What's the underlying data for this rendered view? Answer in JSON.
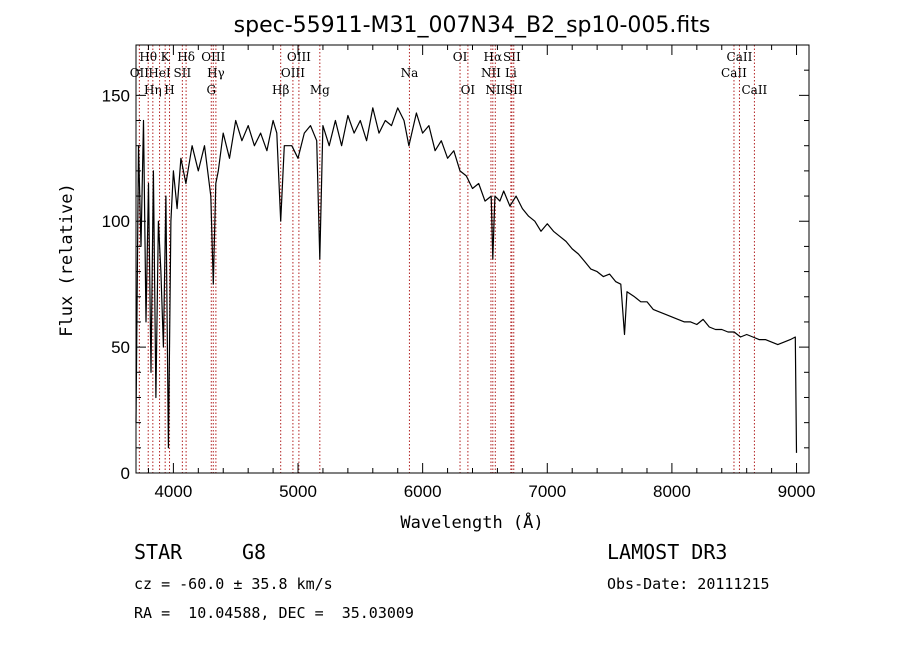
{
  "chart_data": {
    "type": "line",
    "title": "spec-55911-M31_007N34_B2_sp10-005.fits",
    "xlabel": "Wavelength (Å)",
    "ylabel": "Flux (relative)",
    "xlim": [
      3700,
      9100
    ],
    "ylim": [
      0,
      170
    ],
    "xticks": [
      4000,
      5000,
      6000,
      7000,
      8000,
      9000
    ],
    "xtick_labels": [
      "4000",
      "5000",
      "6000",
      "7000",
      "8000",
      "9000"
    ],
    "yticks": [
      0,
      50,
      100,
      150
    ],
    "ytick_labels": [
      "0",
      "50",
      "100",
      "150"
    ],
    "line_color": "#000000",
    "marker_line_color": "#b22222",
    "series": [
      {
        "name": "flux",
        "x": [
          3700,
          3720,
          3740,
          3760,
          3780,
          3800,
          3820,
          3840,
          3860,
          3880,
          3900,
          3920,
          3940,
          3960,
          3980,
          4000,
          4030,
          4060,
          4100,
          4150,
          4200,
          4250,
          4300,
          4320,
          4340,
          4360,
          4400,
          4450,
          4500,
          4550,
          4600,
          4650,
          4700,
          4750,
          4800,
          4830,
          4861,
          4890,
          4950,
          5000,
          5050,
          5100,
          5150,
          5175,
          5200,
          5250,
          5300,
          5350,
          5400,
          5450,
          5500,
          5550,
          5600,
          5650,
          5700,
          5750,
          5800,
          5850,
          5890,
          5950,
          6000,
          6050,
          6100,
          6150,
          6200,
          6250,
          6300,
          6350,
          6400,
          6450,
          6500,
          6550,
          6563,
          6580,
          6620,
          6650,
          6700,
          6750,
          6800,
          6850,
          6900,
          6950,
          7000,
          7050,
          7100,
          7150,
          7200,
          7250,
          7300,
          7350,
          7400,
          7450,
          7500,
          7550,
          7590,
          7620,
          7640,
          7700,
          7750,
          7800,
          7850,
          7900,
          7950,
          8000,
          8050,
          8100,
          8150,
          8200,
          8250,
          8300,
          8350,
          8400,
          8450,
          8500,
          8550,
          8600,
          8650,
          8700,
          8750,
          8800,
          8850,
          8900,
          8950,
          8990,
          9000
        ],
        "values": [
          20,
          130,
          90,
          140,
          60,
          115,
          40,
          120,
          30,
          100,
          80,
          50,
          110,
          10,
          100,
          120,
          105,
          125,
          115,
          130,
          120,
          130,
          110,
          75,
          115,
          120,
          135,
          125,
          140,
          132,
          138,
          130,
          135,
          128,
          140,
          135,
          100,
          130,
          130,
          125,
          135,
          138,
          132,
          85,
          138,
          130,
          140,
          130,
          142,
          135,
          140,
          132,
          145,
          135,
          140,
          138,
          145,
          140,
          130,
          143,
          135,
          138,
          128,
          132,
          125,
          128,
          120,
          118,
          113,
          115,
          108,
          110,
          85,
          110,
          108,
          112,
          106,
          110,
          105,
          102,
          100,
          96,
          99,
          96,
          94,
          92,
          89,
          87,
          84,
          81,
          80,
          78,
          79,
          76,
          75,
          55,
          72,
          70,
          68,
          68,
          65,
          64,
          63,
          62,
          61,
          60,
          60,
          59,
          61,
          58,
          57,
          57,
          56,
          56,
          54,
          55,
          54,
          53,
          53,
          52,
          51,
          52,
          53,
          54,
          8
        ]
      }
    ],
    "line_markers": [
      {
        "name": "OII",
        "wavelength": 3727,
        "tier": 2
      },
      {
        "name": "Hθ",
        "wavelength": 3798,
        "tier": 1
      },
      {
        "name": "Hη",
        "wavelength": 3835,
        "tier": 3
      },
      {
        "name": "HeI",
        "wavelength": 3889,
        "tier": 2
      },
      {
        "name": "K",
        "wavelength": 3934,
        "tier": 1
      },
      {
        "name": "H",
        "wavelength": 3969,
        "tier": 3
      },
      {
        "name": "SII",
        "wavelength": 4072,
        "tier": 2
      },
      {
        "name": "Hδ",
        "wavelength": 4102,
        "tier": 1
      },
      {
        "name": "OIII",
        "wavelength": 4320,
        "tier": 1
      },
      {
        "name": "G",
        "wavelength": 4304,
        "tier": 3
      },
      {
        "name": "Hγ",
        "wavelength": 4341,
        "tier": 2
      },
      {
        "name": "Hβ",
        "wavelength": 4861,
        "tier": 3
      },
      {
        "name": "OIII",
        "wavelength": 4959,
        "tier": 2
      },
      {
        "name": "OIII",
        "wavelength": 5007,
        "tier": 1
      },
      {
        "name": "Mg",
        "wavelength": 5175,
        "tier": 3
      },
      {
        "name": "Na",
        "wavelength": 5894,
        "tier": 2
      },
      {
        "name": "OI",
        "wavelength": 6300,
        "tier": 1
      },
      {
        "name": "OI",
        "wavelength": 6363,
        "tier": 3
      },
      {
        "name": "NII",
        "wavelength": 6548,
        "tier": 2
      },
      {
        "name": "Hα",
        "wavelength": 6563,
        "tier": 1
      },
      {
        "name": "NII",
        "wavelength": 6583,
        "tier": 3
      },
      {
        "name": "Li",
        "wavelength": 6708,
        "tier": 2
      },
      {
        "name": "SII",
        "wavelength": 6716,
        "tier": 1
      },
      {
        "name": "SII",
        "wavelength": 6731,
        "tier": 3
      },
      {
        "name": "CaII",
        "wavelength": 8498,
        "tier": 2
      },
      {
        "name": "CaII",
        "wavelength": 8542,
        "tier": 1
      },
      {
        "name": "CaII",
        "wavelength": 8662,
        "tier": 3
      }
    ]
  },
  "info": {
    "object_class": "STAR",
    "subclass": "G8",
    "survey": "LAMOST DR3",
    "redshift_line": "cz = -60.0 ± 35.8 km/s",
    "obs_date": "Obs-Date: 20111215",
    "coords": "RA =  10.04588, DEC =  35.03009"
  }
}
